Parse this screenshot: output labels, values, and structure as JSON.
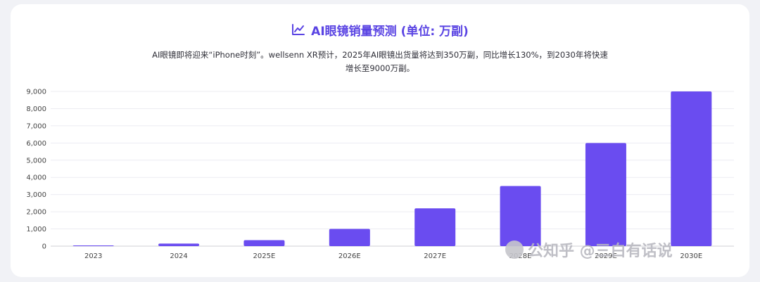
{
  "title": "AI眼镜销量预测 (单位: 万副)",
  "subtitle_line1": "AI眼镜即将迎来“iPhone时刻”。wellsenn XR预计，2025年AI眼镜出货量将达到350万副，同比增长130%，到2030年将快速",
  "subtitle_line2": "增长至9000万副。",
  "watermark": "公知乎 @三白有话说",
  "colors": {
    "bar": "#6a4cf0",
    "title": "#5a44e3",
    "grid": "#ececf2"
  },
  "chart_data": {
    "type": "bar",
    "title": "AI眼镜销量预测 (单位: 万副)",
    "categories": [
      "2023",
      "2024",
      "2025E",
      "2026E",
      "2027E",
      "2028E",
      "2029E",
      "2030E"
    ],
    "values": [
      25,
      150,
      350,
      1000,
      2200,
      3500,
      6000,
      9000
    ],
    "ylim": [
      0,
      9000
    ],
    "yticks": [
      "0",
      "1,000",
      "2,000",
      "3,000",
      "4,000",
      "5,000",
      "6,000",
      "7,000",
      "8,000",
      "9,000"
    ],
    "ytick_values": [
      0,
      1000,
      2000,
      3000,
      4000,
      5000,
      6000,
      7000,
      8000,
      9000
    ],
    "grid": true,
    "legend": "none"
  }
}
